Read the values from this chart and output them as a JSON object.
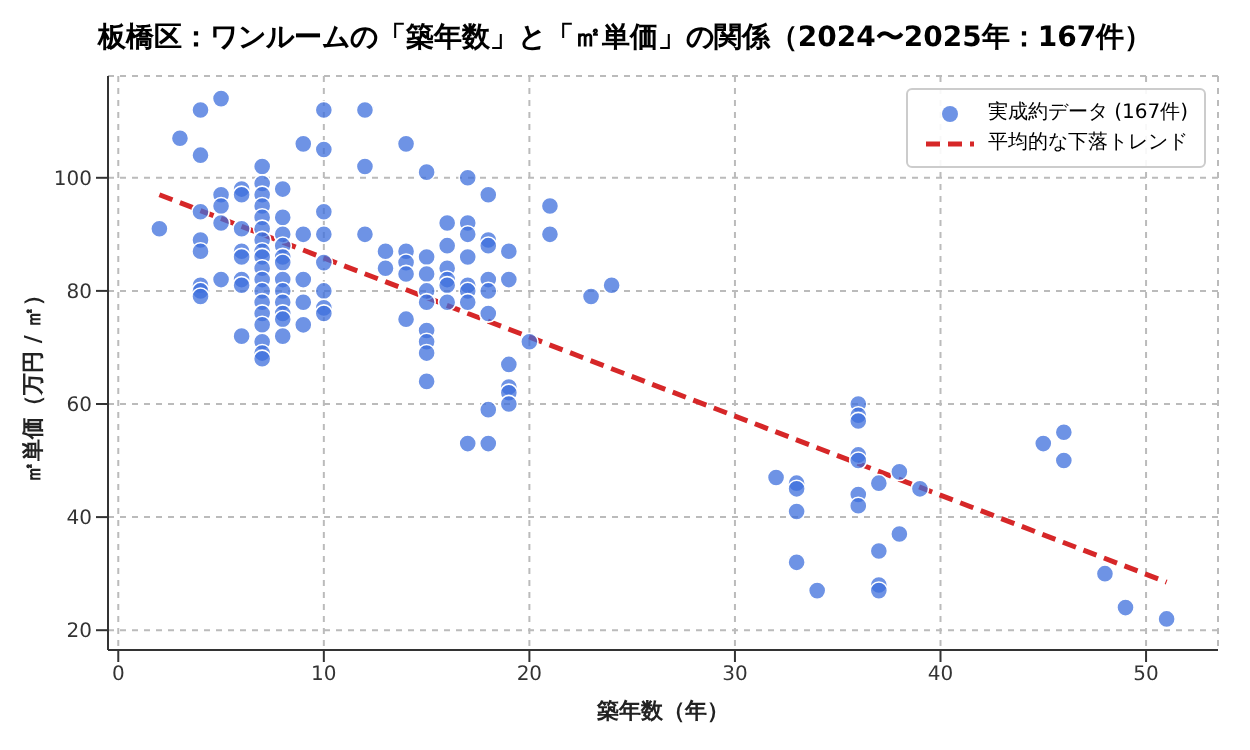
{
  "chart_data": {
    "type": "scatter",
    "title": "板橋区：ワンルームの「築年数」と「㎡単価」の関係（2024〜2025年：167件）",
    "xlabel": "築年数（年）",
    "ylabel": "㎡単価（万円 / ㎡）",
    "xlim": [
      -0.5,
      53.5
    ],
    "ylim": [
      16.5,
      118
    ],
    "xticks": [
      0,
      10,
      20,
      30,
      40,
      50
    ],
    "yticks": [
      20,
      40,
      60,
      80,
      100
    ],
    "grid": true,
    "legend": "top right",
    "series": [
      {
        "name": "実成約データ (167件)",
        "color": "#3d6fdc",
        "marker": "circle",
        "x": [
          2,
          3,
          4,
          4,
          4,
          4,
          4,
          4,
          4,
          4,
          5,
          5,
          5,
          5,
          5,
          6,
          6,
          6,
          6,
          6,
          6,
          6,
          6,
          7,
          7,
          7,
          7,
          7,
          7,
          7,
          7,
          7,
          7,
          7,
          7,
          7,
          7,
          7,
          7,
          7,
          7,
          8,
          8,
          8,
          8,
          8,
          8,
          8,
          8,
          8,
          8,
          8,
          8,
          9,
          9,
          9,
          9,
          9,
          10,
          10,
          10,
          10,
          10,
          10,
          10,
          10,
          12,
          12,
          12,
          13,
          13,
          14,
          14,
          14,
          14,
          14,
          15,
          15,
          15,
          15,
          15,
          15,
          15,
          15,
          15,
          16,
          16,
          16,
          16,
          16,
          16,
          17,
          17,
          17,
          17,
          17,
          17,
          17,
          17,
          18,
          18,
          18,
          18,
          18,
          18,
          18,
          18,
          19,
          19,
          19,
          19,
          19,
          19,
          20,
          21,
          21,
          23,
          24,
          32,
          33,
          33,
          33,
          33,
          34,
          36,
          36,
          36,
          36,
          36,
          36,
          36,
          37,
          37,
          37,
          37,
          38,
          38,
          39,
          45,
          46,
          46,
          48,
          49,
          51
        ],
        "values": [
          91,
          107,
          112,
          104,
          94,
          89,
          87,
          81,
          80,
          79,
          114,
          97,
          95,
          92,
          82,
          98,
          97,
          91,
          87,
          86,
          82,
          81,
          72,
          102,
          99,
          97,
          95,
          93,
          91,
          89,
          87,
          86,
          84,
          82,
          80,
          78,
          76,
          74,
          71,
          69,
          68,
          98,
          93,
          90,
          88,
          86,
          85,
          82,
          80,
          78,
          76,
          75,
          72,
          106,
          90,
          82,
          78,
          74,
          112,
          105,
          94,
          90,
          85,
          80,
          77,
          76,
          112,
          102,
          90,
          87,
          84,
          106,
          87,
          85,
          83,
          75,
          101,
          86,
          83,
          80,
          78,
          73,
          71,
          69,
          64,
          92,
          88,
          84,
          82,
          81,
          78,
          100,
          92,
          90,
          86,
          81,
          80,
          78,
          53,
          97,
          89,
          88,
          82,
          80,
          76,
          59,
          53,
          87,
          82,
          67,
          63,
          62,
          60,
          71,
          95,
          90,
          79,
          81,
          47,
          46,
          45,
          41,
          32,
          27,
          60,
          58,
          57,
          51,
          50,
          44,
          42,
          46,
          34,
          28,
          27,
          48,
          37,
          45,
          53,
          55,
          50,
          30,
          24,
          22
        ]
      },
      {
        "name": "平均的な下落トレンド",
        "type": "line",
        "color": "#d62728",
        "line_style": "dashed",
        "marker": "none",
        "x": [
          2,
          51
        ],
        "values": [
          97,
          28.5
        ]
      }
    ]
  }
}
